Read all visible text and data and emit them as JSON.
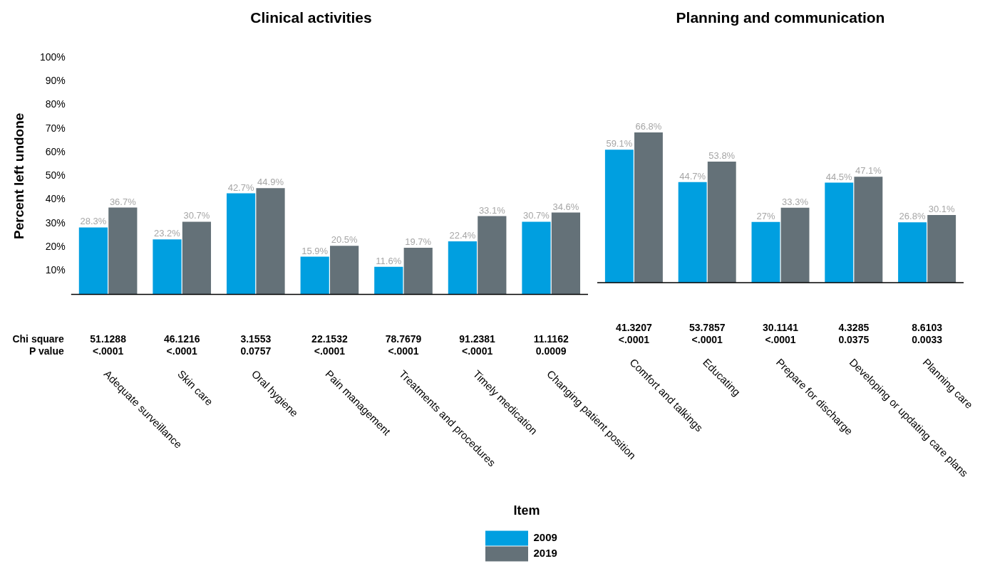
{
  "chart_data": [
    {
      "type": "bar",
      "title": "Clinical activities",
      "ylabel": "Percent left undone",
      "legend_title": "Item",
      "legend": "bottom",
      "categories": [
        "Adequate surveillance",
        "Skin care",
        "Oral hygiene",
        "Pain management",
        "Treatments and procedures",
        "Timely medication",
        "Changing patient position"
      ],
      "series": [
        {
          "name": "2009",
          "color": "#009fe0",
          "values": [
            28.3,
            23.2,
            42.7,
            15.9,
            11.6,
            22.4,
            30.7
          ],
          "value_labels": [
            "28.3%",
            "23.2%",
            "42.7%",
            "15.9%",
            "11.6%",
            "22.4%",
            "30.7%"
          ]
        },
        {
          "name": "2019",
          "color": "#647178",
          "values": [
            36.7,
            30.7,
            44.9,
            20.5,
            19.7,
            33.1,
            34.6
          ],
          "value_labels": [
            "36.7%",
            "30.7%",
            "44.9%",
            "20.5%",
            "19.7%",
            "33.1%",
            "34.6%"
          ]
        }
      ],
      "ylim": [
        0,
        100
      ],
      "yticks": [
        {
          "value": 10,
          "label": "10%"
        },
        {
          "value": 20,
          "label": "20%"
        },
        {
          "value": 30,
          "label": "30%"
        },
        {
          "value": 40,
          "label": "40%"
        },
        {
          "value": 50,
          "label": "50%"
        },
        {
          "value": 60,
          "label": "60%"
        },
        {
          "value": 70,
          "label": "70%"
        },
        {
          "value": 80,
          "label": "80%"
        },
        {
          "value": 90,
          "label": "90%"
        },
        {
          "value": 100,
          "label": "100%"
        }
      ],
      "grid": false,
      "annotations": [
        "Chi square",
        "P value",
        "51.1288\n<.0001",
        "46.1216\n<.0001",
        "3.1553\n0.0757",
        "22.1532\n<.0001",
        "78.7679\n<.0001",
        "91.2381\n<.0001",
        "11.1162\n0.0009"
      ]
    },
    {
      "type": "bar",
      "title": "Planning and communication",
      "tick_labels": "x",
      "categories": [
        "Comfort and talkings",
        "Educating",
        "Prepare for discharge",
        "Developing or updating care plans",
        "Planning care"
      ],
      "series": [
        {
          "color": "#009fe0",
          "values": [
            59.1,
            44.7,
            27,
            44.5,
            26.8
          ],
          "value_labels": [
            "59.1%",
            "44.7%",
            "27%",
            "44.5%",
            "26.8%"
          ]
        },
        {
          "color": "#647178",
          "values": [
            66.8,
            53.8,
            33.3,
            47.1,
            30.1
          ],
          "value_labels": [
            "66.8%",
            "53.8%",
            "33.3%",
            "47.1%",
            "30.1%"
          ]
        }
      ],
      "grid": false,
      "annotations": [
        "41.3207\n<.0001",
        "53.7857\n<.0001",
        "30.1141\n<.0001",
        "4.3285\n0.0375",
        "8.6103\n0.0033"
      ]
    }
  ]
}
